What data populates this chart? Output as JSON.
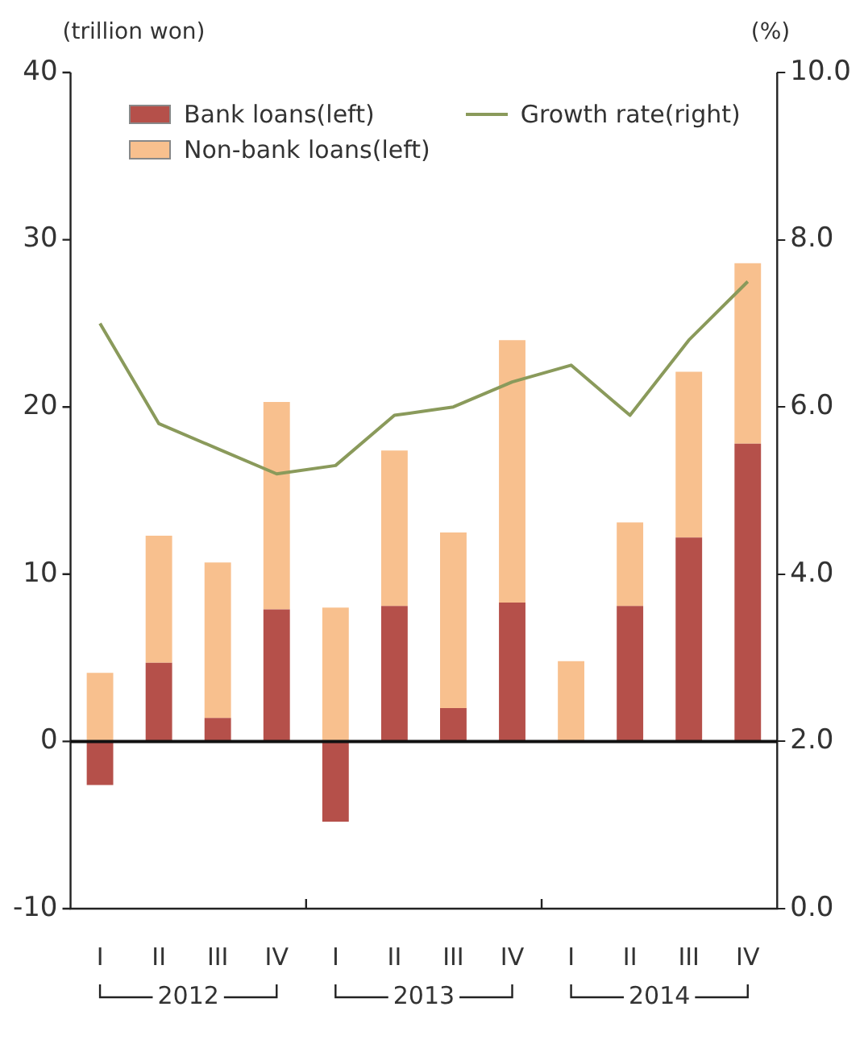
{
  "chart_data": {
    "type": "bar",
    "stacked": true,
    "ylabel": "(trillion won)",
    "y2label": "(%)",
    "categories": [
      "I",
      "II",
      "III",
      "IV",
      "I",
      "II",
      "III",
      "IV",
      "I",
      "II",
      "III",
      "IV"
    ],
    "series": [
      {
        "name": "Bank loans(left)",
        "color": "#b5504a",
        "values": [
          -2.6,
          4.7,
          1.4,
          7.9,
          -4.8,
          8.1,
          2.0,
          8.3,
          null,
          8.1,
          12.2,
          17.8
        ]
      },
      {
        "name": "Non-bank loans(left)",
        "color": "#f8c08e",
        "values": [
          4.1,
          7.6,
          9.3,
          12.4,
          8.0,
          9.3,
          10.5,
          15.7,
          4.8,
          5.0,
          9.9,
          10.8
        ]
      },
      {
        "name": "Growth rate(right)",
        "type": "line",
        "axis": "y2",
        "color": "#8a9a5b",
        "values": [
          7.0,
          5.8,
          5.5,
          5.2,
          5.3,
          5.9,
          6.0,
          6.3,
          6.5,
          5.9,
          6.8,
          7.5
        ]
      }
    ],
    "ylim": [
      -10,
      40
    ],
    "yticks": [
      -10,
      0,
      10,
      20,
      30,
      40
    ],
    "y2lim": [
      0,
      10
    ],
    "y2ticks": [
      {
        "value": 0,
        "label": "0.0"
      },
      {
        "value": 2,
        "label": "2.0"
      },
      {
        "value": 4,
        "label": "4.0"
      },
      {
        "value": 6,
        "label": "6.0"
      },
      {
        "value": 8,
        "label": "8.0"
      },
      {
        "value": 10,
        "label": "10.0"
      }
    ],
    "annotations": [
      "2012",
      "2013",
      "2014"
    ],
    "ref_lines": [
      {
        "axis": "y",
        "value": 0,
        "color": "#111111"
      }
    ],
    "legend": "top left",
    "grid": false,
    "marker": "none"
  }
}
